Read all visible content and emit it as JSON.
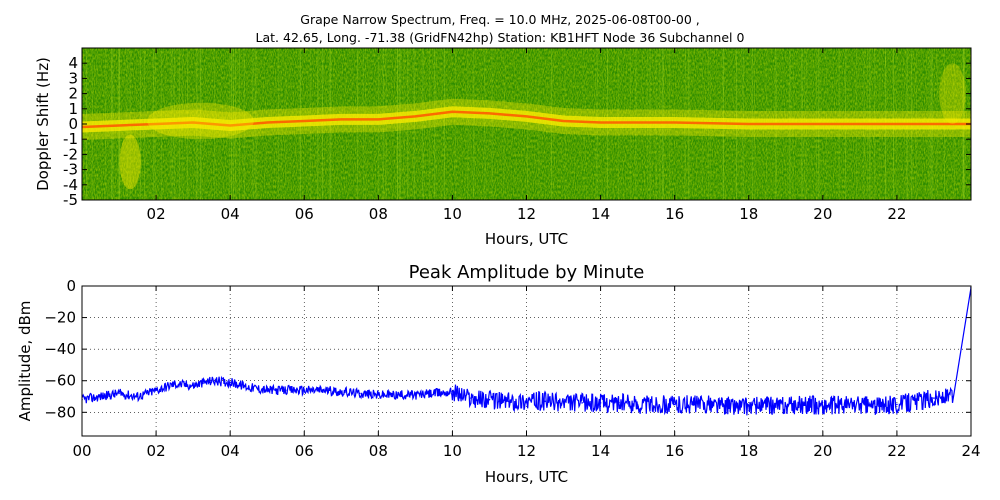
{
  "header": {
    "title_line1": "Grape Narrow Spectrum, Freq. = 10.0 MHz, 2025-06-08T00-00 ,",
    "title_line2": "Lat.  42.65, Long. -71.38 (GridFN42hp) Station: KB1HFT Node 36 Subchannel 0"
  },
  "chart_data": [
    {
      "type": "heatmap",
      "title": "",
      "xlabel": "Hours, UTC",
      "ylabel": "Doppler Shift (Hz)",
      "xlim": [
        0,
        24
      ],
      "ylim": [
        -5,
        5
      ],
      "x_ticks": [
        "02",
        "04",
        "06",
        "08",
        "10",
        "12",
        "14",
        "16",
        "18",
        "20",
        "22"
      ],
      "x_tick_values": [
        2,
        4,
        6,
        8,
        10,
        12,
        14,
        16,
        18,
        20,
        22
      ],
      "y_ticks": [
        "4",
        "3",
        "2",
        "1",
        "0",
        "-1",
        "-2",
        "-3",
        "-4",
        "-5"
      ],
      "y_tick_values": [
        4,
        3,
        2,
        1,
        0,
        -1,
        -2,
        -3,
        -4,
        -5
      ],
      "colors": {
        "background": "#228800",
        "mid": "#66bb00",
        "high": "#ffee00",
        "peak": "#ff5500"
      },
      "center_trace": [
        {
          "x": 0,
          "y": -0.2
        },
        {
          "x": 1,
          "y": -0.1
        },
        {
          "x": 2,
          "y": 0
        },
        {
          "x": 3,
          "y": 0.1
        },
        {
          "x": 4,
          "y": -0.1
        },
        {
          "x": 5,
          "y": 0.1
        },
        {
          "x": 6,
          "y": 0.2
        },
        {
          "x": 7,
          "y": 0.3
        },
        {
          "x": 8,
          "y": 0.3
        },
        {
          "x": 9,
          "y": 0.5
        },
        {
          "x": 10,
          "y": 0.8
        },
        {
          "x": 11,
          "y": 0.7
        },
        {
          "x": 12,
          "y": 0.5
        },
        {
          "x": 13,
          "y": 0.2
        },
        {
          "x": 14,
          "y": 0.1
        },
        {
          "x": 16,
          "y": 0.1
        },
        {
          "x": 18,
          "y": 0
        },
        {
          "x": 20,
          "y": 0
        },
        {
          "x": 22,
          "y": 0
        },
        {
          "x": 24,
          "y": 0
        }
      ]
    },
    {
      "type": "line",
      "title": "Peak Amplitude by Minute",
      "xlabel": "Hours, UTC",
      "ylabel": "Amplitude, dBm",
      "xlim": [
        0,
        24
      ],
      "ylim": [
        -95,
        0
      ],
      "grid": true,
      "x_ticks": [
        "00",
        "02",
        "04",
        "06",
        "08",
        "10",
        "12",
        "14",
        "16",
        "18",
        "20",
        "22",
        "24"
      ],
      "x_tick_values": [
        0,
        2,
        4,
        6,
        8,
        10,
        12,
        14,
        16,
        18,
        20,
        22,
        24
      ],
      "y_ticks": [
        "0",
        "−20",
        "−40",
        "−60",
        "−80"
      ],
      "y_tick_values": [
        0,
        -20,
        -40,
        -60,
        -80
      ],
      "line_color": "#0000ff",
      "series": [
        {
          "x": [
            0,
            0.5,
            1,
            1.5,
            2,
            2.5,
            3,
            3.5,
            4,
            4.5,
            5,
            5.5,
            6,
            6.5,
            7,
            7.5,
            8,
            8.5,
            9,
            9.5,
            10,
            10.5,
            11,
            11.5,
            12,
            12.5,
            13,
            13.5,
            14,
            14.5,
            15,
            15.5,
            16,
            16.5,
            17,
            17.5,
            18,
            18.5,
            19,
            19.5,
            20,
            20.5,
            21,
            21.5,
            22,
            22.5,
            23,
            23.5,
            24
          ],
          "values": [
            -72,
            -70,
            -68,
            -70,
            -66,
            -62,
            -63,
            -60,
            -61,
            -64,
            -66,
            -66,
            -66,
            -66,
            -67,
            -68,
            -69,
            -69,
            -69,
            -68,
            -67,
            -71,
            -72,
            -73,
            -73,
            -73,
            -74,
            -74,
            -74,
            -74,
            -75,
            -75,
            -75,
            -75,
            -75,
            -76,
            -76,
            -76,
            -76,
            -75,
            -76,
            -75,
            -75,
            -76,
            -75,
            -73,
            -71,
            -70,
            -1
          ]
        }
      ]
    }
  ]
}
